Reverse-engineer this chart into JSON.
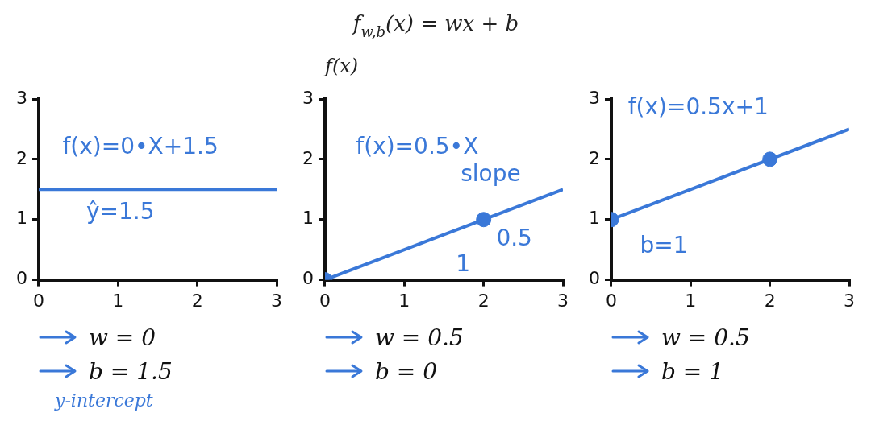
{
  "chart_data": [
    {
      "type": "line",
      "xlim": [
        0,
        3
      ],
      "ylim": [
        0,
        3
      ],
      "xticks": [
        0,
        1,
        2,
        3
      ],
      "yticks": [
        0,
        1,
        2,
        3
      ],
      "grid": false,
      "legend": false,
      "series": [
        {
          "color": "#3a78d8",
          "x": [
            0,
            3
          ],
          "values": [
            1.5,
            1.5
          ]
        }
      ],
      "annotations": [
        "f(x)=0•X+1.5",
        "ŷ=1.5",
        "w = 0",
        "b = 1.5",
        "y-intercept"
      ]
    },
    {
      "type": "line",
      "title": "f$_{w,b}$(x) = wx + b",
      "ylabel": "f(x)",
      "xlim": [
        0,
        3
      ],
      "ylim": [
        0,
        3
      ],
      "xticks": [
        0,
        1,
        2,
        3
      ],
      "yticks": [
        0,
        1,
        2,
        3
      ],
      "grid": false,
      "legend": false,
      "series": [
        {
          "color": "#3a78d8",
          "x": [
            0,
            3
          ],
          "values": [
            0,
            1.5
          ]
        },
        {
          "type": "scatter",
          "color": "#3a78d8",
          "x": [
            0,
            2
          ],
          "values": [
            0,
            1
          ]
        }
      ],
      "annotations": [
        "f(x)=0.5•X",
        "slope",
        "0.5",
        "1",
        "w = 0.5",
        "b = 0"
      ]
    },
    {
      "type": "line",
      "xlim": [
        0,
        3
      ],
      "ylim": [
        0,
        3
      ],
      "xticks": [
        0,
        1,
        2,
        3
      ],
      "yticks": [
        0,
        1,
        2,
        3
      ],
      "grid": false,
      "legend": false,
      "series": [
        {
          "color": "#3a78d8",
          "x": [
            0,
            3
          ],
          "values": [
            1,
            2.5
          ]
        },
        {
          "type": "scatter",
          "color": "#3a78d8",
          "x": [
            0,
            2
          ],
          "values": [
            1,
            2
          ]
        }
      ],
      "annotations": [
        "f(x)=0.5x+1",
        "b=1",
        "w = 0.5",
        "b = 1"
      ]
    }
  ]
}
